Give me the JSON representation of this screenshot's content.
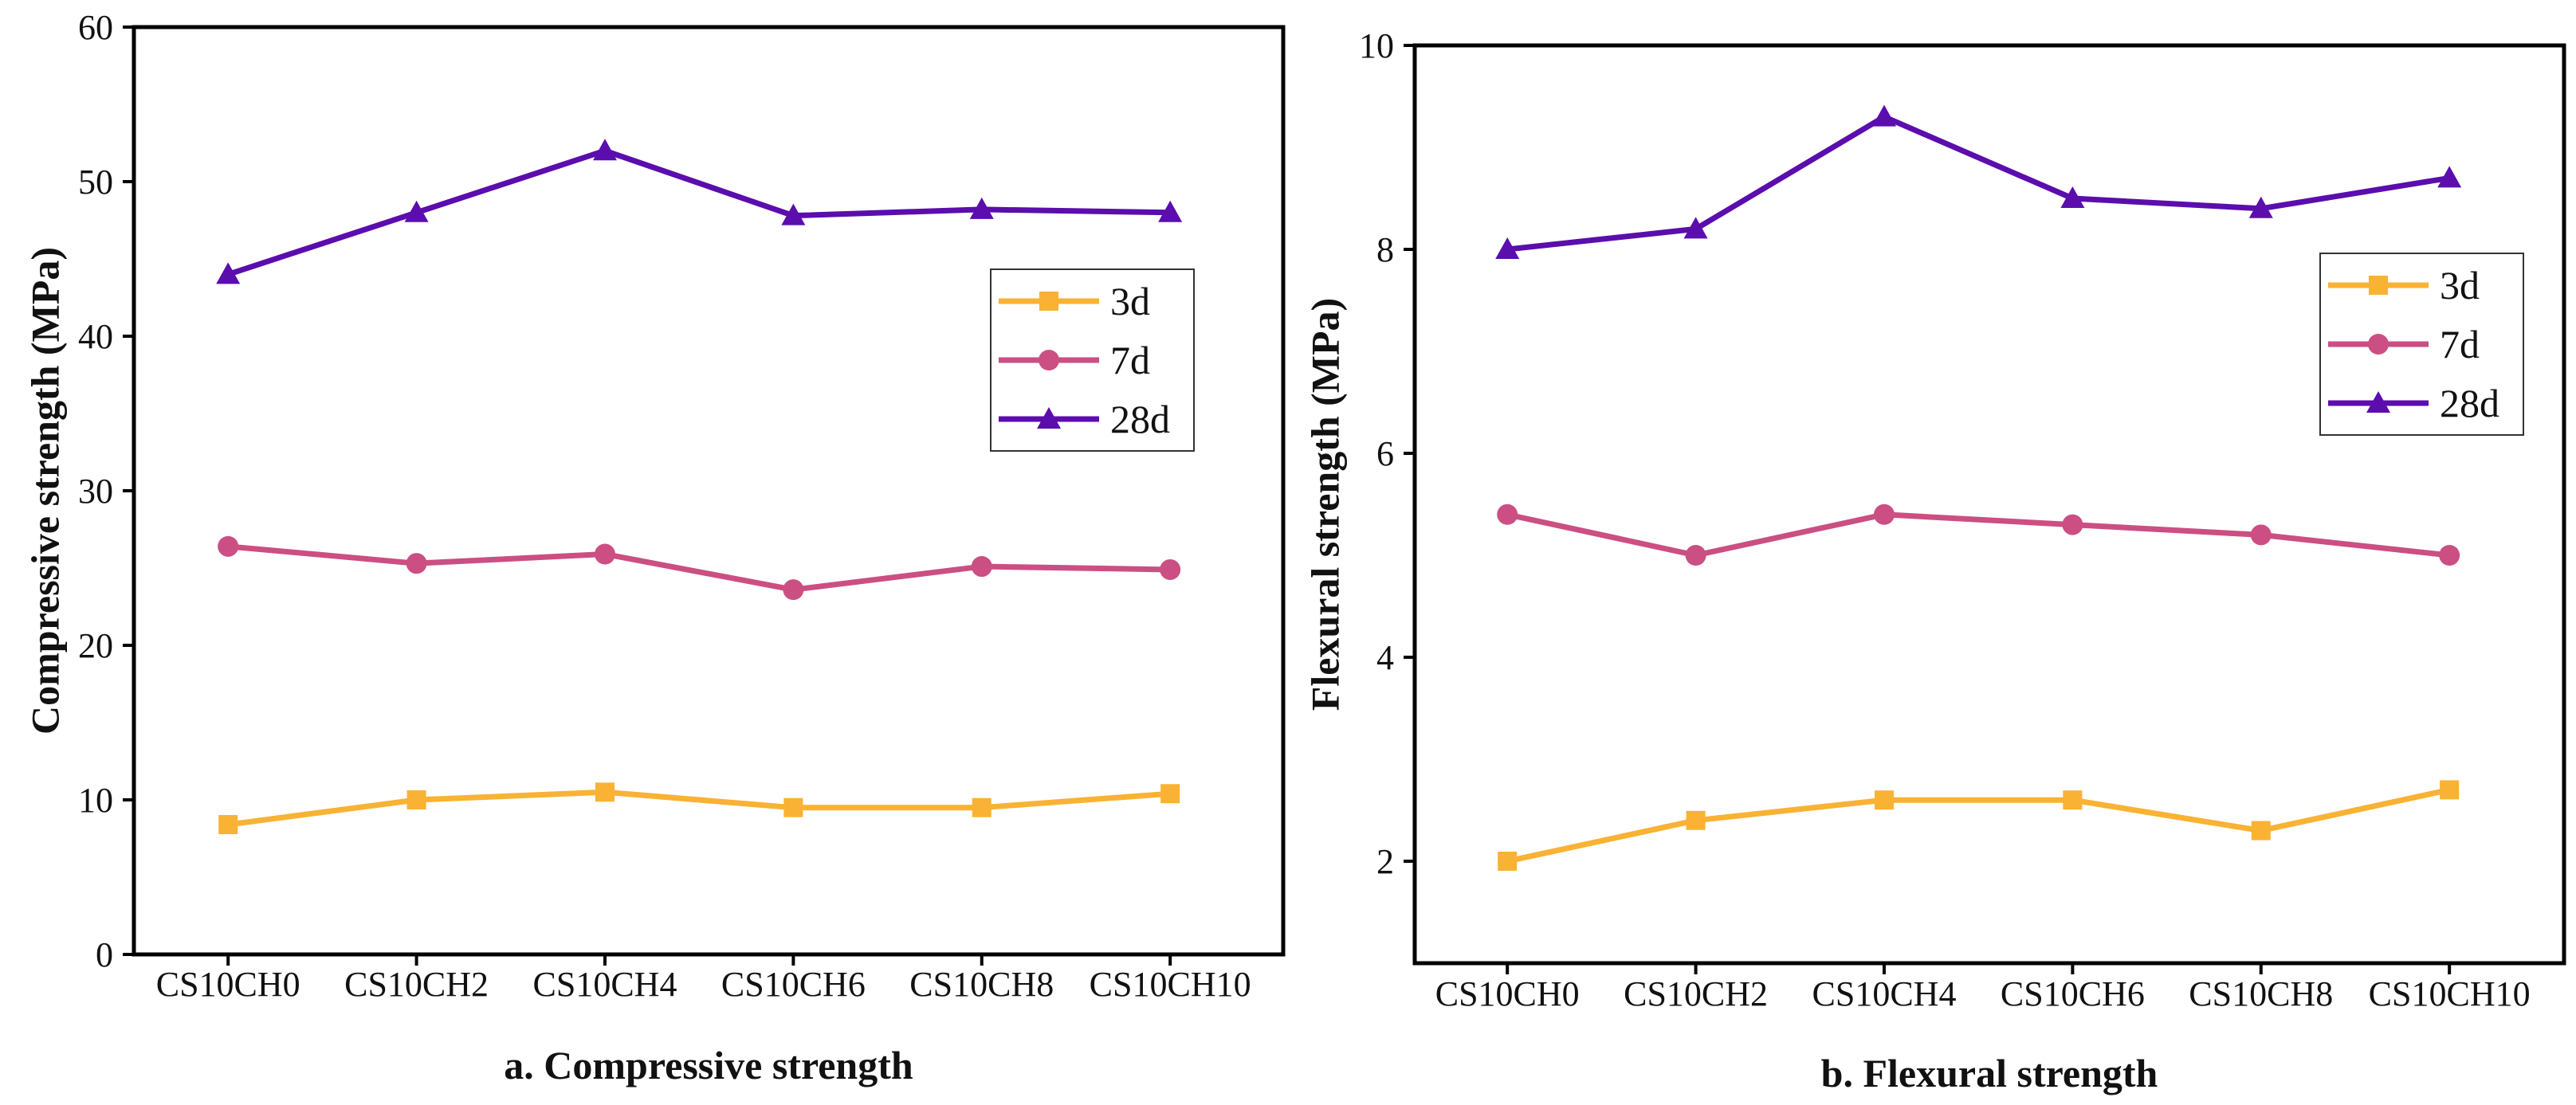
{
  "chart_data": [
    {
      "type": "line",
      "caption": "a. Compressive strength",
      "xlabel": "",
      "ylabel": "Compressive strength (MPa)",
      "categories": [
        "CS10CH0",
        "CS10CH2",
        "CS10CH4",
        "CS10CH6",
        "CS10CH8",
        "CS10CH10"
      ],
      "ylim": [
        0,
        60
      ],
      "yticks": [
        "0",
        "10",
        "20",
        "30",
        "40",
        "50",
        "60"
      ],
      "grid": false,
      "legend_position": "right",
      "series": [
        {
          "name": "3d",
          "color": "#F9B233",
          "marker": "square",
          "values": [
            8.4,
            10.0,
            10.5,
            9.5,
            9.5,
            10.4
          ]
        },
        {
          "name": "7d",
          "color": "#CB4F82",
          "marker": "circle",
          "values": [
            26.4,
            25.3,
            25.9,
            23.6,
            25.1,
            24.9
          ]
        },
        {
          "name": "28d",
          "color": "#5B0DAD",
          "marker": "triangle",
          "values": [
            44.0,
            48.0,
            52.0,
            47.8,
            48.2,
            48.0
          ]
        }
      ]
    },
    {
      "type": "line",
      "caption": "b. Flexural strength",
      "xlabel": "",
      "ylabel": "Flexural strength (MPa)",
      "categories": [
        "CS10CH0",
        "CS10CH2",
        "CS10CH4",
        "CS10CH6",
        "CS10CH8",
        "CS10CH10"
      ],
      "ylim": [
        1,
        10
      ],
      "yticks": [
        "2",
        "4",
        "6",
        "8",
        "10"
      ],
      "grid": false,
      "legend_position": "top-right",
      "series": [
        {
          "name": "3d",
          "color": "#F9B233",
          "marker": "square",
          "values": [
            2.0,
            2.4,
            2.6,
            2.6,
            2.3,
            2.7
          ]
        },
        {
          "name": "7d",
          "color": "#CB4F82",
          "marker": "circle",
          "values": [
            5.4,
            5.0,
            5.4,
            5.3,
            5.2,
            5.0
          ]
        },
        {
          "name": "28d",
          "color": "#5B0DAD",
          "marker": "triangle",
          "values": [
            8.0,
            8.2,
            9.3,
            8.5,
            8.4,
            8.7
          ]
        }
      ]
    }
  ]
}
